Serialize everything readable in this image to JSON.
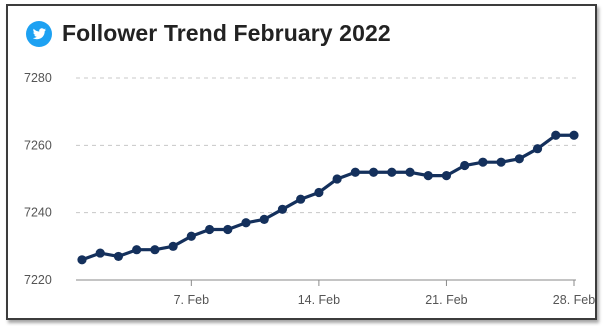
{
  "app": {
    "accent": "#1da1f2",
    "icon": "twitter-bird-icon"
  },
  "chart_data": {
    "type": "line",
    "title": "Follower Trend February 2022",
    "xlabel": "",
    "ylabel": "",
    "x": [
      "1. Feb",
      "2. Feb",
      "3. Feb",
      "4. Feb",
      "5. Feb",
      "6. Feb",
      "7. Feb",
      "8. Feb",
      "9. Feb",
      "10. Feb",
      "11. Feb",
      "12. Feb",
      "13. Feb",
      "14. Feb",
      "15. Feb",
      "16. Feb",
      "17. Feb",
      "18. Feb",
      "19. Feb",
      "20. Feb",
      "21. Feb",
      "22. Feb",
      "23. Feb",
      "24. Feb",
      "25. Feb",
      "26. Feb",
      "27. Feb",
      "28. Feb"
    ],
    "series": [
      {
        "values": [
          7226,
          7228,
          7227,
          7229,
          7229,
          7230,
          7233,
          7235,
          7235,
          7237,
          7238,
          7241,
          7244,
          7246,
          7250,
          7252,
          7252,
          7252,
          7252,
          7251,
          7251,
          7254,
          7255,
          7255,
          7256,
          7259,
          7263,
          7263
        ],
        "color": "#14305c"
      }
    ],
    "xticks": [
      "7. Feb",
      "14. Feb",
      "21. Feb",
      "28. Feb"
    ],
    "yticks": [
      7220,
      7240,
      7260,
      7280
    ],
    "ylim": [
      7220,
      7280
    ],
    "grid": true,
    "grid_style": "dashed-horizontal",
    "legend": false
  }
}
